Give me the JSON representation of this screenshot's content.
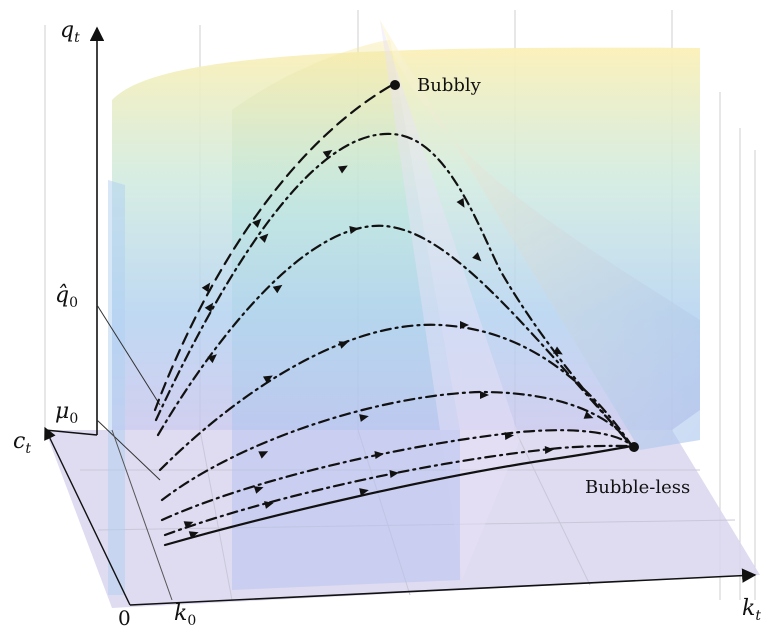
{
  "axes": {
    "vertical": "q",
    "vertical_sub": "t",
    "depth": "c",
    "depth_sub": "t",
    "horizontal": "k",
    "horizontal_sub": "t",
    "origin": "0",
    "k0_main": "k",
    "k0_sub": "0"
  },
  "ticks": {
    "qhat0_main": "q̂",
    "qhat0_sub": "0",
    "mu0_main": "μ",
    "mu0_sub": "0"
  },
  "points": {
    "bubbly": "Bubbly",
    "bubble_less": "Bubble-less"
  },
  "trajectories": [
    {
      "style": "dashed",
      "ends_at": "Bubbly"
    },
    {
      "style": "dash-dot",
      "ends_at": "Bubble-less"
    },
    {
      "style": "dash-dot",
      "ends_at": "Bubble-less"
    },
    {
      "style": "dash-dot",
      "ends_at": "Bubble-less"
    },
    {
      "style": "dash-dot",
      "ends_at": "Bubble-less"
    },
    {
      "style": "dash-dot",
      "ends_at": "Bubble-less"
    },
    {
      "style": "dash-dot",
      "ends_at": "Bubble-less"
    },
    {
      "style": "solid",
      "ends_at": "Bubble-less"
    }
  ],
  "colors": {
    "surface_top": "#f7e9a8",
    "surface_mid": "#bfe3df",
    "surface_low": "#a9c7ee",
    "floor": "#d7d3ec",
    "trajectory": "#111111"
  }
}
